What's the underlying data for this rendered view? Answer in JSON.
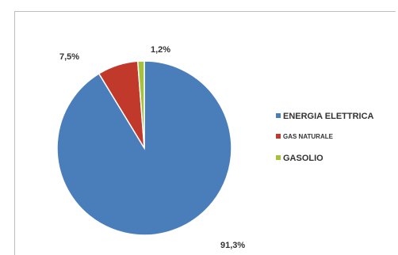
{
  "chart_data": {
    "type": "pie",
    "categories": [
      "ENERGIA ELETTRICA",
      "GAS NATURALE",
      "GASOLIO"
    ],
    "values": [
      91.3,
      7.5,
      1.2
    ],
    "data_labels": [
      "91,3%",
      "7,5%",
      "1,2%"
    ],
    "colors": [
      "#4a7ebb",
      "#c0392b",
      "#a6c13c"
    ],
    "legend_placement": "right"
  }
}
